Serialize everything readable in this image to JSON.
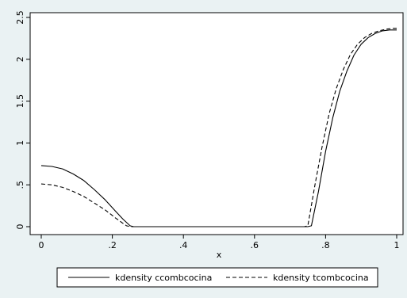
{
  "chart_data": {
    "type": "line",
    "title": "",
    "xlabel": "x",
    "ylabel": "",
    "xlim": [
      0,
      1
    ],
    "ylim": [
      0,
      2.5
    ],
    "x_ticks": [
      0,
      0.2,
      0.4,
      0.6,
      0.8,
      1
    ],
    "x_tick_labels": [
      "0",
      ".2",
      ".4",
      ".6",
      ".8",
      "1"
    ],
    "y_ticks": [
      0,
      0.5,
      1,
      1.5,
      2,
      2.5
    ],
    "y_tick_labels": [
      "0",
      ".5",
      "1",
      "1.5",
      "2",
      "2.5"
    ],
    "grid": false,
    "legend_position": "bottom",
    "series": [
      {
        "name": "kdensity ccombcocina",
        "style": "solid",
        "color": "#000000",
        "x": [
          0,
          0.03,
          0.06,
          0.09,
          0.12,
          0.15,
          0.18,
          0.21,
          0.23,
          0.25,
          0.26,
          0.3,
          0.4,
          0.5,
          0.6,
          0.7,
          0.75,
          0.76,
          0.78,
          0.8,
          0.82,
          0.84,
          0.86,
          0.88,
          0.9,
          0.92,
          0.94,
          0.96,
          0.98,
          1.0
        ],
        "y": [
          0.73,
          0.72,
          0.69,
          0.63,
          0.55,
          0.44,
          0.32,
          0.18,
          0.09,
          0.01,
          0,
          0,
          0,
          0,
          0,
          0,
          0,
          0.01,
          0.42,
          0.9,
          1.3,
          1.62,
          1.86,
          2.05,
          2.18,
          2.26,
          2.31,
          2.34,
          2.35,
          2.35
        ]
      },
      {
        "name": "kdensity tcombcocina",
        "style": "dashed",
        "color": "#000000",
        "x": [
          0,
          0.03,
          0.06,
          0.09,
          0.12,
          0.15,
          0.18,
          0.21,
          0.23,
          0.24,
          0.25,
          0.3,
          0.4,
          0.5,
          0.6,
          0.7,
          0.74,
          0.75,
          0.77,
          0.79,
          0.81,
          0.83,
          0.85,
          0.87,
          0.89,
          0.91,
          0.93,
          0.95,
          0.97,
          0.99,
          1.0
        ],
        "y": [
          0.51,
          0.5,
          0.47,
          0.42,
          0.36,
          0.28,
          0.2,
          0.1,
          0.04,
          0.01,
          0,
          0,
          0,
          0,
          0,
          0,
          0,
          0.01,
          0.5,
          0.95,
          1.35,
          1.65,
          1.88,
          2.06,
          2.18,
          2.26,
          2.31,
          2.34,
          2.36,
          2.37,
          2.37
        ]
      }
    ]
  }
}
